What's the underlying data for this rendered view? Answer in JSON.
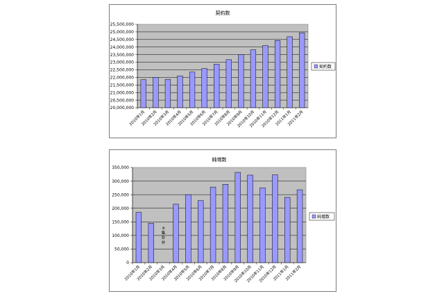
{
  "chart_data": [
    {
      "type": "bar",
      "title": "契約数",
      "categories": [
        "2010年1月",
        "2010年2月",
        "2010年3月",
        "2010年4月",
        "2010年5月",
        "2010年6月",
        "2010年7月",
        "2010年8月",
        "2010年9月",
        "2010年10月",
        "2010年11月",
        "2010年12月",
        "2011年1月",
        "2011年2月"
      ],
      "series": [
        {
          "name": "契約数",
          "values": [
            21850000,
            22000000,
            21870000,
            22100000,
            22350000,
            22580000,
            22870000,
            23170000,
            23500000,
            23820000,
            24100000,
            24430000,
            24680000,
            24940000
          ]
        }
      ],
      "ylim": [
        20000000,
        25500000
      ],
      "yticks": [
        "20,000,000",
        "20,500,000",
        "21,000,000",
        "21,500,000",
        "22,000,000",
        "22,500,000",
        "23,000,000",
        "23,500,000",
        "24,000,000",
        "24,500,000",
        "25,000,000",
        "25,500,000"
      ],
      "grid": true,
      "legend_position": "right",
      "bar_color": "#9999ff",
      "plot_bg": "#c0c0c0"
    },
    {
      "type": "bar",
      "title": "純増数",
      "categories": [
        "2010年1月",
        "2010年2月",
        "2010年3月",
        "2010年4月",
        "2010年5月",
        "2010年6月",
        "2010年7月",
        "2010年8月",
        "2010年9月",
        "2010年10月",
        "2010年11月",
        "2010年12月",
        "2011年1月",
        "2011年2月"
      ],
      "series": [
        {
          "name": "純増数",
          "values": [
            185000,
            145000,
            null,
            215000,
            250000,
            228000,
            278000,
            288000,
            332000,
            322000,
            275000,
            323000,
            240000,
            268000
          ]
        }
      ],
      "annotation": "※集計外",
      "ylim": [
        0,
        350000
      ],
      "yticks": [
        "0",
        "50,000",
        "100,000",
        "150,000",
        "200,000",
        "250,000",
        "300,000",
        "350,000"
      ],
      "grid": true,
      "legend_position": "right",
      "bar_color": "#9999ff",
      "plot_bg": "#c0c0c0"
    }
  ]
}
